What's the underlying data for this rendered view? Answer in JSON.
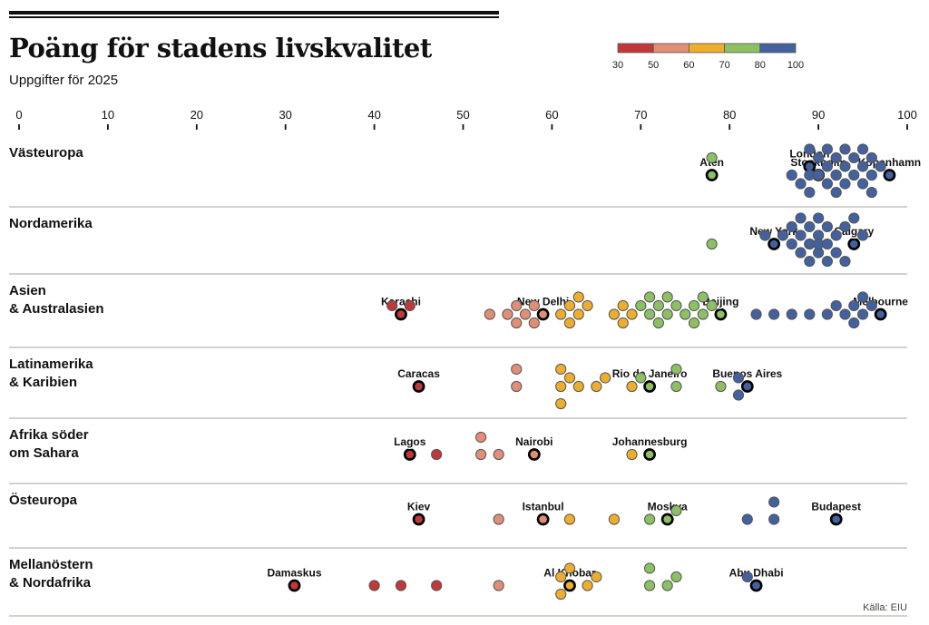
{
  "title": "Poäng för stadens livskvalitet",
  "subtitle": "Uppgifter för 2025",
  "source": "Källa: EIU",
  "legend": {
    "stops": [
      "30",
      "50",
      "60",
      "70",
      "80",
      "100"
    ],
    "colors": [
      "#c0383a",
      "#e08f76",
      "#edae2d",
      "#8cc063",
      "#43619e"
    ]
  },
  "chart_data": {
    "type": "scatter",
    "title": "Poäng för stadens livskvalitet",
    "subtitle": "Uppgifter för 2025",
    "xlabel": "",
    "ylabel": "",
    "xlim": [
      0,
      100
    ],
    "xticks": [
      "0",
      "10",
      "20",
      "30",
      "40",
      "50",
      "60",
      "70",
      "80",
      "90",
      "100"
    ],
    "color_bins": [
      {
        "range": [
          30,
          50
        ],
        "color": "#c0383a"
      },
      {
        "range": [
          50,
          60
        ],
        "color": "#e08f76"
      },
      {
        "range": [
          60,
          70
        ],
        "color": "#edae2d"
      },
      {
        "range": [
          70,
          80
        ],
        "color": "#8cc063"
      },
      {
        "range": [
          80,
          100
        ],
        "color": "#43619e"
      }
    ],
    "regions": [
      {
        "name": "Västeuropa",
        "points": [
          78,
          87,
          88,
          89,
          89,
          90,
          90,
          91,
          91,
          92,
          92,
          92,
          93,
          93,
          94,
          94,
          95,
          95,
          96,
          96,
          89,
          90,
          91,
          92,
          93,
          95,
          97,
          96
        ],
        "highlights": [
          {
            "label": "Aten",
            "value": 78
          },
          {
            "label": "Stockholm",
            "value": 90
          },
          {
            "label": "Köpenhamn",
            "value": 98
          },
          {
            "label": "London",
            "value": 89
          }
        ]
      },
      {
        "name": "Nordamerika",
        "points": [
          78,
          84,
          86,
          87,
          87,
          88,
          88,
          88,
          89,
          89,
          89,
          89,
          90,
          90,
          90,
          90,
          91,
          91,
          91,
          92,
          92,
          93,
          93,
          94,
          95
        ],
        "highlights": [
          {
            "label": "New York",
            "value": 85
          },
          {
            "label": "Calgary",
            "value": 94
          }
        ]
      },
      {
        "name": "Asien\n& Australasien",
        "points": [
          42,
          44,
          53,
          55,
          56,
          56,
          57,
          58,
          58,
          61,
          62,
          62,
          63,
          63,
          64,
          67,
          68,
          68,
          69,
          70,
          71,
          71,
          72,
          72,
          73,
          73,
          74,
          75,
          76,
          76,
          77,
          77,
          78,
          83,
          85,
          87,
          89,
          91,
          92,
          93,
          94,
          94,
          95,
          95,
          96
        ],
        "highlights": [
          {
            "label": "Karachi",
            "value": 43
          },
          {
            "label": "New Delhi",
            "value": 59
          },
          {
            "label": "Beijing",
            "value": 79
          },
          {
            "label": "Melbourne",
            "value": 97
          }
        ]
      },
      {
        "name": "Latinamerika\n& Karibien",
        "points": [
          56,
          56,
          61,
          61,
          61,
          62,
          63,
          65,
          66,
          69,
          70,
          74,
          74,
          79,
          81,
          81
        ],
        "highlights": [
          {
            "label": "Caracas",
            "value": 45
          },
          {
            "label": "Rio de Janeiro",
            "value": 71
          },
          {
            "label": "Buenos Aires",
            "value": 82
          }
        ]
      },
      {
        "name": "Afrika söder\nom Sahara",
        "points": [
          47,
          52,
          52,
          54,
          69
        ],
        "highlights": [
          {
            "label": "Lagos",
            "value": 44
          },
          {
            "label": "Nairobi",
            "value": 58
          },
          {
            "label": "Johannesburg",
            "value": 71
          }
        ]
      },
      {
        "name": "Östeuropa",
        "points": [
          54,
          62,
          67,
          71,
          74,
          82,
          85,
          85
        ],
        "highlights": [
          {
            "label": "Kiev",
            "value": 45
          },
          {
            "label": "Istanbul",
            "value": 59
          },
          {
            "label": "Moskva",
            "value": 73
          },
          {
            "label": "Budapest",
            "value": 92
          }
        ]
      },
      {
        "name": "Mellanöstern\n& Nordafrika",
        "points": [
          40,
          43,
          47,
          54,
          61,
          61,
          62,
          64,
          65,
          71,
          71,
          73,
          74,
          82
        ],
        "highlights": [
          {
            "label": "Damaskus",
            "value": 31
          },
          {
            "label": "Al Khobar",
            "value": 62
          },
          {
            "label": "Abu Dhabi",
            "value": 83
          }
        ]
      }
    ]
  }
}
